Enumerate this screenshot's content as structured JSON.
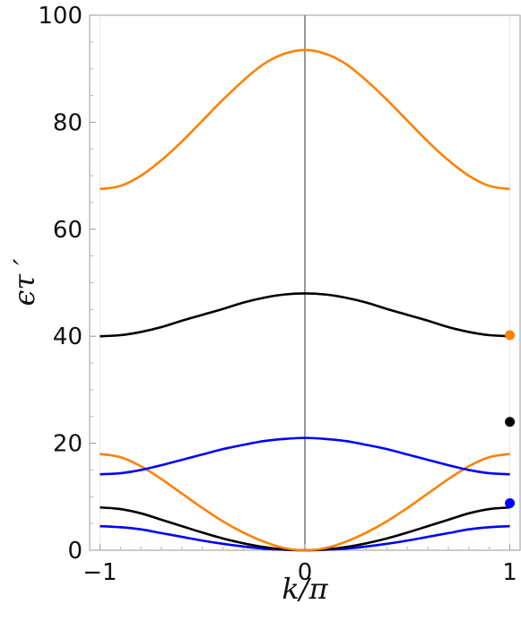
{
  "chart_data": {
    "type": "line",
    "xlabel": "k/π",
    "ylabel": "ϵτ ′",
    "xlim": [
      -1.05,
      1.05
    ],
    "ylim": [
      0,
      100
    ],
    "x_ticks": [
      -1,
      0,
      1
    ],
    "x_tick_labels": [
      "−1",
      "0",
      "1"
    ],
    "y_ticks": [
      0,
      20,
      40,
      60,
      80,
      100
    ],
    "y_tick_labels": [
      "0",
      "20",
      "40",
      "60",
      "80",
      "100"
    ],
    "grid": false,
    "vertical_line_x": 0,
    "x_samples": [
      -1,
      -0.9,
      -0.8,
      -0.7,
      -0.6,
      -0.5,
      -0.4,
      -0.3,
      -0.2,
      -0.1,
      0,
      0.1,
      0.2,
      0.3,
      0.4,
      0.5,
      0.6,
      0.7,
      0.8,
      0.9,
      1
    ],
    "series": [
      {
        "color": "#0000ff",
        "values": [
          4.5,
          4.3,
          3.9,
          3.2,
          2.5,
          1.8,
          1.2,
          0.7,
          0.3,
          0.1,
          0,
          0.1,
          0.3,
          0.7,
          1.2,
          1.8,
          2.5,
          3.2,
          3.9,
          4.3,
          4.5
        ]
      },
      {
        "color": "#000000",
        "values": [
          8.0,
          7.7,
          6.9,
          5.7,
          4.5,
          3.3,
          2.2,
          1.3,
          0.6,
          0.15,
          0,
          0.15,
          0.6,
          1.3,
          2.2,
          3.3,
          4.5,
          5.7,
          6.9,
          7.7,
          8.0
        ]
      },
      {
        "color": "#ff8000",
        "values": [
          18.0,
          17.4,
          15.7,
          13.3,
          10.6,
          7.9,
          5.4,
          3.3,
          1.6,
          0.4,
          0,
          0.4,
          1.6,
          3.3,
          5.4,
          7.9,
          10.6,
          13.3,
          15.7,
          17.4,
          18.0
        ]
      },
      {
        "color": "#0000ff",
        "values": [
          14.2,
          14.4,
          15.0,
          15.9,
          16.9,
          17.9,
          18.9,
          19.7,
          20.4,
          20.8,
          21.0,
          20.8,
          20.4,
          19.7,
          18.9,
          17.9,
          16.9,
          15.9,
          15.0,
          14.4,
          14.2
        ]
      },
      {
        "color": "#000000",
        "values": [
          40.0,
          40.2,
          40.8,
          41.7,
          42.9,
          44.0,
          45.1,
          46.3,
          47.2,
          47.8,
          48.0,
          47.8,
          47.2,
          46.3,
          45.1,
          44.0,
          42.9,
          41.7,
          40.8,
          40.2,
          40.0
        ]
      },
      {
        "color": "#ff8000",
        "values": [
          67.5,
          68.1,
          70.0,
          72.9,
          76.4,
          80.3,
          84.2,
          87.8,
          90.9,
          92.8,
          93.5,
          92.8,
          90.9,
          87.8,
          84.2,
          80.3,
          76.4,
          72.9,
          70.0,
          68.1,
          67.5
        ]
      }
    ],
    "points": [
      {
        "x": 1,
        "y": 40.2,
        "color": "#ff8000"
      },
      {
        "x": 1,
        "y": 24.0,
        "color": "#000000"
      },
      {
        "x": 1,
        "y": 8.8,
        "color": "#0000ff"
      }
    ]
  }
}
